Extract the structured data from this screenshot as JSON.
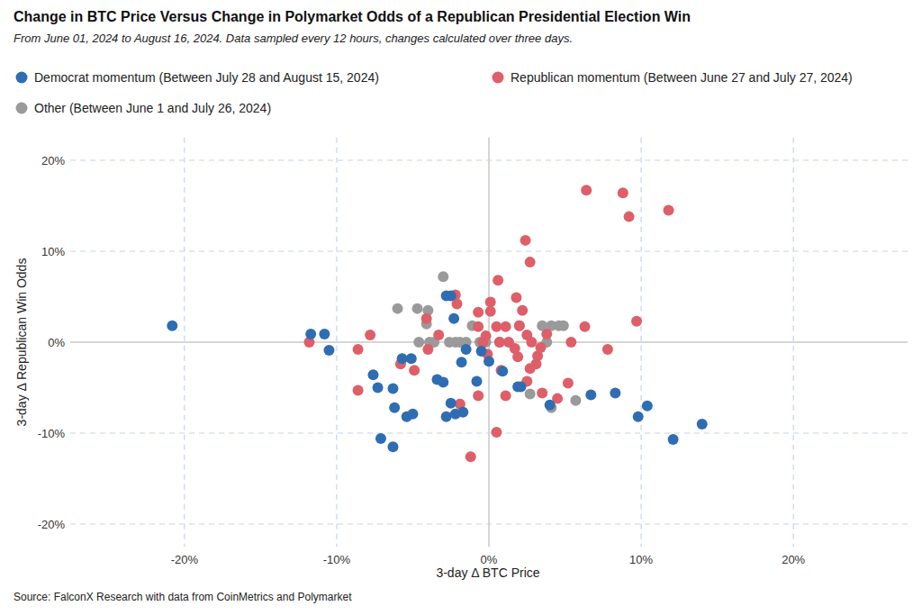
{
  "chart_data": {
    "type": "scatter",
    "title": "Change in BTC Price Versus Change in Polymarket Odds of a Republican Presidential Election Win",
    "subtitle": "From June 01, 2024 to August 16, 2024. Data sampled every 12 hours, changes calculated over three days.",
    "x_label": "3-day Δ BTC Price",
    "y_label": "3-day Δ Republican Win Odds",
    "source": "Source: FalconX Research with data from CoinMetrics and Polymarket",
    "xlim": [
      -27.5,
      27.5
    ],
    "ylim": [
      -22.5,
      22.5
    ],
    "xticks": [
      {
        "value": -20,
        "label": "-20%"
      },
      {
        "value": -10,
        "label": "-10%"
      },
      {
        "value": 0,
        "label": "0%"
      },
      {
        "value": 10,
        "label": "10%"
      },
      {
        "value": 20,
        "label": "20%"
      }
    ],
    "yticks": [
      {
        "value": -20,
        "label": "-20%"
      },
      {
        "value": -10,
        "label": "-10%"
      },
      {
        "value": 0,
        "label": "0%"
      },
      {
        "value": 10,
        "label": "10%"
      },
      {
        "value": 20,
        "label": "20%"
      }
    ],
    "grid": true,
    "legend": "top",
    "marker": "circle",
    "series": [
      {
        "name": "Democrat momentum (Between July 28 and August 15, 2024)",
        "color": "#2f6db3",
        "x": [
          -20.8,
          -11.7,
          -10.8,
          -10.5,
          -7.6,
          -7.3,
          -7.1,
          -6.3,
          -6.2,
          -6.3,
          -5.4,
          -5.0,
          -5.7,
          -5.1,
          -3.4,
          -3.0,
          -2.8,
          -2.5,
          -2.8,
          -2.5,
          -2.3,
          -2.2,
          -1.7,
          -1.8,
          -1.5,
          -0.8,
          -0.5,
          0.0,
          0.9,
          1.9,
          2.1,
          4.0,
          6.7,
          8.3,
          9.8,
          10.4,
          12.1,
          14.0
        ],
        "values": [
          1.8,
          0.9,
          0.9,
          -0.9,
          -3.6,
          -5.0,
          -10.6,
          -5.1,
          -7.2,
          -11.5,
          -8.2,
          -7.9,
          -1.8,
          -1.8,
          -4.1,
          -4.4,
          5.1,
          5.1,
          -8.2,
          -6.7,
          2.6,
          -7.9,
          -7.7,
          -2.2,
          -0.8,
          -4.3,
          -1.0,
          -2.1,
          -3.2,
          -4.9,
          -4.9,
          -6.9,
          -5.8,
          -5.6,
          -8.2,
          -7.0,
          -10.7,
          -9.0
        ]
      },
      {
        "name": "Republican momentum (Between June 27 and July 27, 2024)",
        "color": "#de5f68",
        "x": [
          -11.8,
          -8.6,
          -7.8,
          -8.6,
          -5.8,
          -4.9,
          -4.1,
          -4.0,
          -3.3,
          -2.2,
          -2.1,
          -1.9,
          -1.2,
          -0.7,
          -0.7,
          -0.7,
          -0.4,
          0.1,
          0.1,
          -0.2,
          -0.1,
          0.5,
          0.6,
          0.5,
          0.7,
          0.8,
          1.1,
          1.1,
          1.3,
          1.7,
          1.8,
          1.9,
          2.0,
          2.2,
          2.4,
          2.5,
          2.5,
          2.7,
          2.8,
          2.7,
          3.1,
          3.2,
          3.4,
          3.5,
          3.8,
          4.5,
          5.2,
          5.4,
          6.4,
          6.3,
          7.8,
          8.8,
          9.2,
          9.7,
          11.8
        ],
        "values": [
          0.0,
          -0.8,
          0.8,
          -5.3,
          -2.4,
          -3.1,
          2.6,
          -0.8,
          0.8,
          5.2,
          4.2,
          -6.8,
          -12.6,
          3.3,
          1.7,
          -5.9,
          0.0,
          4.4,
          3.4,
          0.7,
          -1.3,
          -9.9,
          6.8,
          1.7,
          0.0,
          -3.1,
          1.7,
          -5.9,
          0.0,
          -0.7,
          4.9,
          -1.6,
          1.8,
          3.5,
          11.2,
          -4.3,
          0.8,
          8.8,
          0.0,
          -2.9,
          -2.4,
          -1.5,
          -0.6,
          -5.6,
          0.9,
          -6.2,
          -4.5,
          0.0,
          16.7,
          1.7,
          -0.8,
          16.4,
          13.8,
          2.3,
          14.5
        ]
      },
      {
        "name": "Other (Between June 1 and July 26, 2024)",
        "color": "#9a9a9a",
        "x": [
          -3.0,
          -6.0,
          -4.7,
          -4.0,
          -4.1,
          -4.6,
          -3.9,
          -3.6,
          -2.6,
          -2.2,
          -1.9,
          -1.5,
          -1.1,
          -0.6,
          -0.2,
          0.7,
          2.0,
          3.5,
          4.1,
          4.6,
          4.9,
          3.8,
          2.7,
          4.1,
          5.7
        ],
        "values": [
          7.2,
          3.7,
          3.7,
          3.5,
          2.0,
          0.0,
          0.0,
          0.0,
          0.0,
          0.0,
          0.0,
          0.0,
          1.8,
          0.0,
          0.0,
          0.0,
          1.8,
          1.8,
          1.8,
          1.8,
          1.8,
          0.0,
          -5.7,
          -7.2,
          -6.4
        ]
      }
    ]
  }
}
